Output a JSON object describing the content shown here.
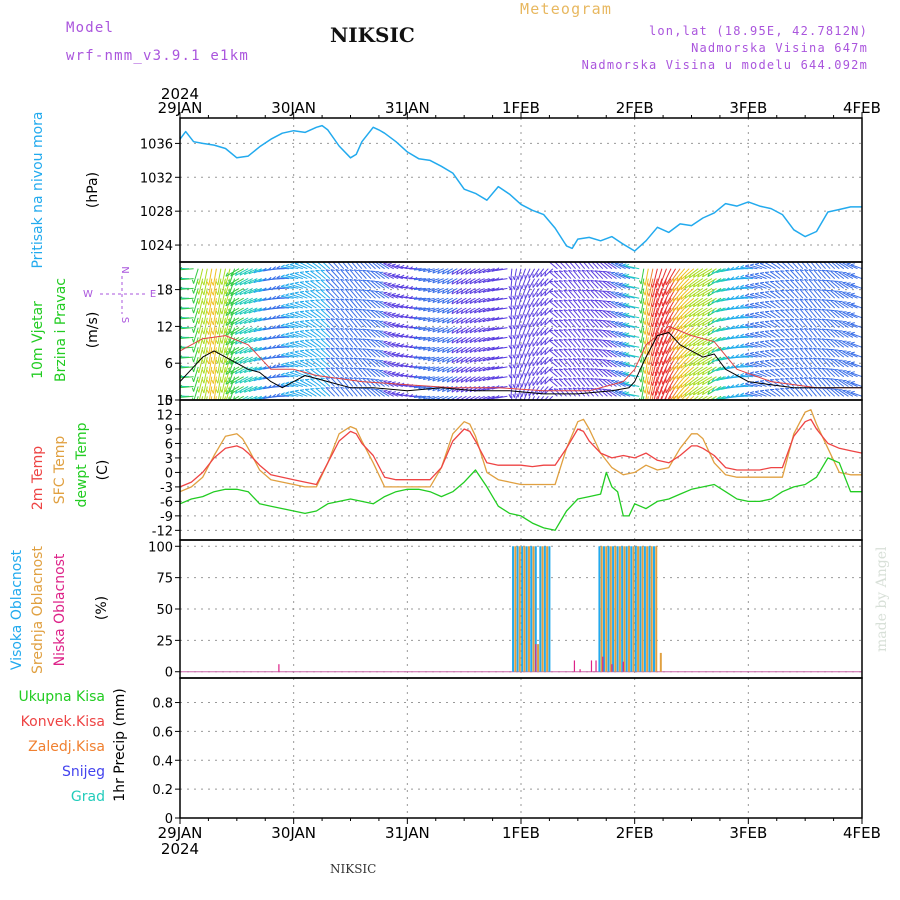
{
  "header": {
    "model_label": "Model",
    "model_name": "wrf-nmm_v3.9.1 e1km",
    "station": "NIKSIC",
    "product": "Meteogram",
    "location": "lon,lat (18.95E, 42.7812N)",
    "elevation": "Nadmorska Visina 647m",
    "model_elevation": "Nadmorska Visina u modelu 644.092m",
    "footer_station": "NIKSIC",
    "credit": "made by Angel"
  },
  "colors": {
    "purple_text": "#aa55dd",
    "orange_text": "#e8b860",
    "pressure": "#22aaee",
    "temp2m": "#ee4444",
    "sfc_temp": "#e0a040",
    "dewpt": "#22cc22",
    "high_cloud": "#22aaee",
    "mid_cloud": "#e0a040",
    "low_cloud": "#dd2288",
    "wind_speed": "#000000",
    "gust": "#dd4444"
  },
  "time_axis": {
    "year": "2024",
    "labels": [
      "29JAN",
      "30JAN",
      "31JAN",
      "1FEB",
      "2FEB",
      "3FEB",
      "4FEB"
    ]
  },
  "chart_data": [
    {
      "type": "line",
      "panel": "pressure",
      "ylabel": [
        "Pritisak na nivou mora",
        "(hPa)"
      ],
      "yticks": [
        1024,
        1028,
        1032,
        1036
      ],
      "ylim": [
        1022,
        1039
      ],
      "grid": true,
      "series": [
        {
          "name": "Pritisak na nivou mora",
          "x": [
            0,
            0.05,
            0.12,
            0.2,
            0.3,
            0.4,
            0.5,
            0.6,
            0.7,
            0.8,
            0.9,
            1.0,
            1.1,
            1.2,
            1.25,
            1.3,
            1.4,
            1.5,
            1.55,
            1.6,
            1.7,
            1.75,
            1.8,
            1.9,
            2.0,
            2.1,
            2.2,
            2.3,
            2.4,
            2.5,
            2.6,
            2.7,
            2.8,
            2.9,
            3.0,
            3.1,
            3.2,
            3.3,
            3.4,
            3.45,
            3.5,
            3.6,
            3.7,
            3.8,
            3.9,
            4.0,
            4.1,
            4.2,
            4.3,
            4.4,
            4.5,
            4.6,
            4.7,
            4.8,
            4.9,
            5.0,
            5.1,
            5.2,
            5.3,
            5.4,
            5.5,
            5.6,
            5.7,
            5.8,
            5.9,
            6.0
          ],
          "values": [
            1036.5,
            1037.4,
            1036.2,
            1036.0,
            1035.8,
            1035.4,
            1034.3,
            1034.5,
            1035.6,
            1036.5,
            1037.2,
            1037.5,
            1037.3,
            1037.9,
            1038.1,
            1037.6,
            1035.7,
            1034.3,
            1034.7,
            1036.2,
            1037.9,
            1037.6,
            1037.2,
            1036.2,
            1035.0,
            1034.2,
            1034.0,
            1033.3,
            1032.5,
            1030.6,
            1030.1,
            1029.3,
            1030.9,
            1030.0,
            1028.8,
            1028.1,
            1027.6,
            1026.0,
            1023.9,
            1023.6,
            1024.7,
            1024.9,
            1024.5,
            1025.0,
            1024.1,
            1023.3,
            1024.5,
            1026.1,
            1025.5,
            1026.5,
            1026.3,
            1027.2,
            1027.8,
            1028.9,
            1028.6,
            1029.1,
            1028.6,
            1028.3,
            1027.6,
            1025.8,
            1025.0,
            1025.6,
            1027.9,
            1028.2,
            1028.5,
            1028.5
          ]
        }
      ]
    },
    {
      "type": "line",
      "panel": "wind",
      "ylabel": [
        "10m Vjetar",
        "Brzina i Pravac",
        "(m/s)"
      ],
      "compass": [
        "N",
        "S",
        "W",
        "E"
      ],
      "yticks": [
        0,
        6,
        12,
        18
      ],
      "ylim": [
        0,
        22.5
      ],
      "grid": true,
      "barbs_levels_ms": [
        0.6,
        2.2,
        3.8,
        5.4,
        7,
        8.6,
        10.2,
        11.8,
        13.4,
        15,
        16.6,
        18.2,
        19.8,
        21.4
      ],
      "series": [
        {
          "name": "speed",
          "x": [
            0,
            0.1,
            0.2,
            0.3,
            0.4,
            0.5,
            0.6,
            0.7,
            0.8,
            0.9,
            1.0,
            1.1,
            1.2,
            1.3,
            1.4,
            1.5,
            1.7,
            2.0,
            2.3,
            2.6,
            2.9,
            3.2,
            3.5,
            3.8,
            3.95,
            4.0,
            4.05,
            4.1,
            4.2,
            4.3,
            4.4,
            4.5,
            4.6,
            4.7,
            4.8,
            5.0,
            5.2,
            5.4,
            5.6,
            5.8,
            6.0
          ],
          "values": [
            3,
            5,
            7,
            8,
            7,
            6,
            5,
            4.5,
            3,
            2,
            3,
            4,
            3.5,
            3,
            2.5,
            2,
            2,
            1.5,
            2,
            1.5,
            1.5,
            1,
            1,
            1.5,
            2,
            3,
            5,
            7,
            10.5,
            11,
            9,
            8,
            7,
            7.5,
            5,
            3,
            2.5,
            2,
            2,
            2,
            2
          ]
        },
        {
          "name": "gust",
          "x": [
            0,
            0.2,
            0.4,
            0.6,
            0.8,
            1.0,
            1.2,
            1.4,
            1.6,
            2.0,
            2.4,
            2.8,
            3.2,
            3.6,
            3.9,
            4.0,
            4.1,
            4.3,
            4.5,
            4.7,
            4.9,
            5.2,
            5.6,
            6.0
          ],
          "values": [
            8,
            10,
            10.5,
            9,
            5,
            5,
            4,
            3.5,
            3,
            2.5,
            2,
            2,
            1.5,
            1.5,
            3,
            5,
            9,
            12,
            10.5,
            9.5,
            5,
            3,
            2,
            2
          ]
        }
      ]
    },
    {
      "type": "line",
      "panel": "temperature",
      "ylabel": [
        "2m Temp",
        "SFC Temp",
        "dewpt Temp",
        "(C)"
      ],
      "yticks": [
        -12,
        -9,
        -6,
        -3,
        0,
        3,
        6,
        9,
        12,
        15
      ],
      "ylim": [
        -14,
        15
      ],
      "grid": true,
      "series": [
        {
          "name": "2m Temp",
          "x": [
            0,
            0.1,
            0.2,
            0.3,
            0.4,
            0.5,
            0.55,
            0.6,
            0.7,
            0.8,
            0.9,
            1.0,
            1.1,
            1.2,
            1.3,
            1.4,
            1.5,
            1.55,
            1.6,
            1.7,
            1.8,
            1.9,
            2.0,
            2.1,
            2.2,
            2.3,
            2.4,
            2.5,
            2.55,
            2.6,
            2.7,
            2.8,
            2.9,
            3.0,
            3.1,
            3.2,
            3.3,
            3.4,
            3.5,
            3.55,
            3.6,
            3.7,
            3.8,
            3.9,
            4.0,
            4.1,
            4.2,
            4.3,
            4.4,
            4.5,
            4.55,
            4.6,
            4.7,
            4.8,
            4.9,
            5.0,
            5.1,
            5.2,
            5.3,
            5.4,
            5.5,
            5.55,
            5.6,
            5.7,
            5.8,
            5.9,
            6.0
          ],
          "values": [
            -3,
            -2,
            0,
            3,
            5,
            5.5,
            5,
            4,
            1.5,
            -0.5,
            -1,
            -1.5,
            -2,
            -2.5,
            2,
            6.5,
            8.5,
            8,
            6,
            3.5,
            -1,
            -1.5,
            -1.5,
            -1.5,
            -1.5,
            1,
            6.5,
            9,
            8.5,
            6.5,
            2,
            1.5,
            1.5,
            1.5,
            1.2,
            1.5,
            1.5,
            5,
            9,
            8.5,
            6.5,
            4,
            3,
            3.5,
            3,
            4,
            2.5,
            2,
            3.5,
            5.5,
            5.5,
            5,
            3.5,
            1,
            0.5,
            0.5,
            0.5,
            1,
            1,
            7.5,
            10.5,
            11,
            9,
            6,
            5,
            4.5,
            4
          ]
        },
        {
          "name": "SFC Temp",
          "x": [
            0,
            0.1,
            0.2,
            0.3,
            0.4,
            0.5,
            0.55,
            0.6,
            0.7,
            0.8,
            0.9,
            1.0,
            1.1,
            1.2,
            1.3,
            1.4,
            1.5,
            1.55,
            1.6,
            1.7,
            1.8,
            1.9,
            2.0,
            2.1,
            2.2,
            2.3,
            2.4,
            2.5,
            2.55,
            2.6,
            2.7,
            2.8,
            2.9,
            3.0,
            3.1,
            3.2,
            3.3,
            3.4,
            3.5,
            3.55,
            3.6,
            3.7,
            3.8,
            3.9,
            4.0,
            4.1,
            4.2,
            4.3,
            4.4,
            4.5,
            4.55,
            4.6,
            4.7,
            4.8,
            4.9,
            5.0,
            5.1,
            5.2,
            5.3,
            5.4,
            5.5,
            5.55,
            5.6,
            5.7,
            5.8,
            5.9,
            6.0
          ],
          "values": [
            -4,
            -3,
            -1,
            3.5,
            7.5,
            8,
            7,
            5,
            0.5,
            -1.5,
            -2,
            -2.5,
            -3,
            -3,
            2,
            8,
            9.5,
            9,
            6.5,
            2,
            -3,
            -3,
            -3,
            -3,
            -3,
            1,
            8,
            10.5,
            10,
            7.5,
            0,
            -1.5,
            -2,
            -2.5,
            -2.5,
            -2.5,
            -2.5,
            5,
            10.5,
            11,
            9,
            4,
            1,
            -0.5,
            0,
            1.5,
            0.5,
            1,
            5,
            8,
            8,
            7,
            2,
            -0.5,
            -1,
            -1,
            -1,
            -1,
            -1,
            8,
            12.5,
            13,
            10,
            5,
            0,
            -0.5,
            -0.5
          ]
        },
        {
          "name": "dewpt Temp",
          "x": [
            0,
            0.1,
            0.2,
            0.3,
            0.4,
            0.5,
            0.6,
            0.7,
            0.8,
            0.9,
            1.0,
            1.1,
            1.2,
            1.3,
            1.4,
            1.5,
            1.6,
            1.7,
            1.8,
            1.9,
            2.0,
            2.1,
            2.2,
            2.3,
            2.4,
            2.5,
            2.6,
            2.7,
            2.8,
            2.9,
            3.0,
            3.1,
            3.2,
            3.3,
            3.4,
            3.5,
            3.6,
            3.7,
            3.75,
            3.8,
            3.85,
            3.9,
            3.95,
            4.0,
            4.1,
            4.2,
            4.3,
            4.4,
            4.5,
            4.6,
            4.7,
            4.8,
            4.9,
            5.0,
            5.1,
            5.2,
            5.3,
            5.4,
            5.5,
            5.6,
            5.7,
            5.8,
            5.9,
            6.0
          ],
          "values": [
            -6.5,
            -5.5,
            -5,
            -4,
            -3.5,
            -3.5,
            -4,
            -6.5,
            -7,
            -7.5,
            -8,
            -8.5,
            -8,
            -6.5,
            -6,
            -5.5,
            -6,
            -6.5,
            -5,
            -4,
            -3.5,
            -3.5,
            -4,
            -5,
            -4,
            -2,
            0.5,
            -3,
            -7,
            -8.5,
            -9,
            -10.5,
            -11.5,
            -12,
            -8,
            -5.5,
            -5,
            -4.5,
            0,
            -3,
            -4,
            -9,
            -9,
            -6.5,
            -7.5,
            -6,
            -5.5,
            -4.5,
            -3.5,
            -3,
            -2.5,
            -4,
            -5.5,
            -6,
            -6,
            -5.5,
            -4,
            -3,
            -2.5,
            -1,
            3,
            2,
            -4,
            -4
          ]
        }
      ]
    },
    {
      "type": "bar",
      "panel": "cloud",
      "ylabel": [
        "Visoka Oblacnost",
        "Srednja Oblacnost",
        "Niska Oblacnost",
        "(%)"
      ],
      "yticks": [
        0,
        25,
        50,
        75,
        100
      ],
      "ylim": [
        -5,
        105
      ],
      "grid": true,
      "series": [
        {
          "name": "Visoka Oblacnost",
          "x": [
            2.93,
            2.97,
            3.01,
            3.05,
            3.09,
            3.13,
            3.17,
            3.21,
            3.25,
            3.69,
            3.73,
            3.77,
            3.81,
            3.85,
            3.89,
            3.93,
            3.97,
            4.01,
            4.05,
            4.09,
            4.13,
            4.17
          ],
          "values": [
            100,
            100,
            100,
            100,
            100,
            100,
            100,
            100,
            100,
            100,
            100,
            100,
            100,
            100,
            100,
            100,
            100,
            100,
            100,
            100,
            100,
            100
          ]
        },
        {
          "name": "Srednja Oblacnost",
          "x": [
            2.95,
            2.99,
            3.03,
            3.07,
            3.11,
            3.15,
            3.19,
            3.23,
            3.71,
            3.75,
            3.79,
            3.83,
            3.87,
            3.91,
            3.95,
            3.99,
            4.03,
            4.07,
            4.11,
            4.15,
            4.19,
            4.23
          ],
          "values": [
            100,
            100,
            100,
            100,
            100,
            22,
            100,
            100,
            100,
            100,
            100,
            100,
            100,
            100,
            100,
            100,
            100,
            100,
            100,
            100,
            100,
            15
          ]
        },
        {
          "name": "Niska Oblacnost",
          "x": [
            0.87,
            3.13,
            3.47,
            3.52,
            3.62,
            3.66,
            3.72,
            3.8,
            3.9
          ],
          "values": [
            6,
            22,
            9,
            2,
            9,
            9,
            12,
            6,
            8
          ]
        }
      ]
    },
    {
      "type": "line",
      "panel": "precip",
      "ylabel": [
        "1hr Precip (mm)"
      ],
      "legend": [
        "Ukupna Kisa",
        "Konvek.Kisa",
        "Zaledj.Kisa",
        "Snijeg",
        "Grad"
      ],
      "legend_colors": [
        "#22cc22",
        "#ee4444",
        "#f08030",
        "#4444ee",
        "#22ccbb"
      ],
      "yticks": [
        0,
        0.2,
        0.4,
        0.6,
        0.8
      ],
      "ylim": [
        0,
        0.97
      ],
      "grid": true,
      "series": [
        {
          "name": "Ukupna Kisa",
          "x": [
            0,
            6
          ],
          "values": [
            0,
            0
          ]
        }
      ]
    }
  ]
}
